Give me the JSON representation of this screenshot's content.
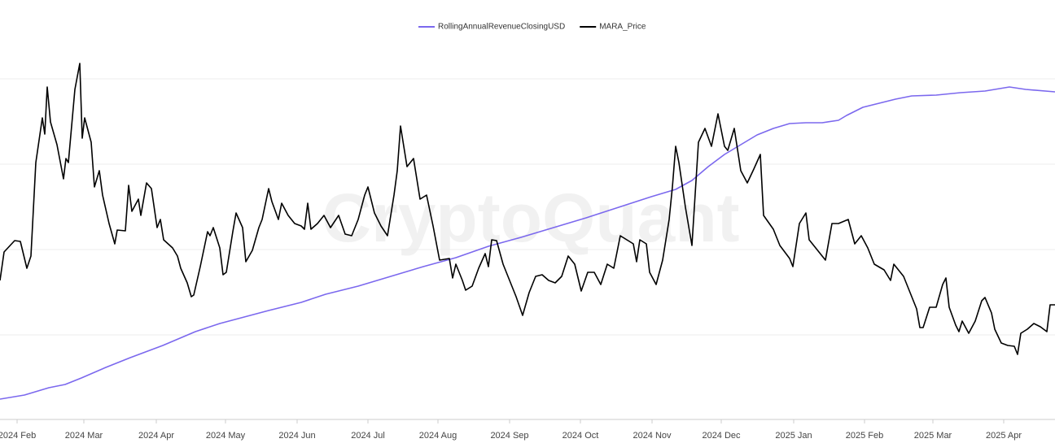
{
  "chart_data": {
    "type": "line",
    "watermark": "CryptoQuant",
    "legend": "top",
    "grid": true,
    "ytick_labels": false,
    "xlim": [
      0,
      1296
    ],
    "xticks": [
      {
        "value": 21,
        "label": "2024 Feb"
      },
      {
        "value": 103,
        "label": "2024 Mar"
      },
      {
        "value": 192,
        "label": "2024 Apr"
      },
      {
        "value": 277,
        "label": "2024 May"
      },
      {
        "value": 365,
        "label": "2024 Jun"
      },
      {
        "value": 452,
        "label": "2024 Jul"
      },
      {
        "value": 538,
        "label": "2024 Aug"
      },
      {
        "value": 626,
        "label": "2024 Sep"
      },
      {
        "value": 713,
        "label": "2024 Oct"
      },
      {
        "value": 801,
        "label": "2024 Nov"
      },
      {
        "value": 886,
        "label": "2024 Dec"
      },
      {
        "value": 975,
        "label": "2025 Jan"
      },
      {
        "value": 1062,
        "label": "2025 Feb"
      },
      {
        "value": 1146,
        "label": "2025 Mar"
      },
      {
        "value": 1233,
        "label": "2025 Apr"
      }
    ],
    "ylim": [
      0,
      472.5
    ],
    "yticks": [
      104,
      209,
      314,
      419
    ],
    "series": [
      {
        "name": "RollingAnnualRevenueClosingUSD",
        "color": "#7b68ee",
        "x": [
          0,
          30,
          60,
          80,
          100,
          130,
          160,
          200,
          240,
          270,
          300,
          330,
          370,
          400,
          440,
          480,
          520,
          560,
          600,
          640,
          680,
          720,
          760,
          800,
          830,
          850,
          870,
          890,
          910,
          930,
          950,
          970,
          990,
          1010,
          1030,
          1040,
          1060,
          1080,
          1100,
          1120,
          1150,
          1180,
          1210,
          1240,
          1260,
          1296
        ],
        "values": [
          25,
          30,
          39,
          43,
          51,
          64,
          76,
          91,
          108,
          118,
          126,
          134,
          144,
          154,
          164,
          176,
          188,
          199,
          213,
          224,
          236,
          248,
          261,
          274,
          283,
          294,
          311,
          326,
          338,
          350,
          358,
          364,
          365,
          365,
          368,
          374,
          384,
          389,
          394,
          398,
          399,
          402,
          404,
          409,
          406,
          403
        ]
      },
      {
        "name": "MARA_Price",
        "color": "#000000",
        "x": [
          0,
          5,
          18,
          25,
          33,
          38,
          44,
          52,
          55,
          58,
          62,
          70,
          78,
          81,
          84,
          92,
          98,
          101,
          104,
          112,
          116,
          122,
          126,
          134,
          141,
          144,
          154,
          158,
          162,
          170,
          173,
          180,
          186,
          193,
          197,
          201,
          212,
          218,
          222,
          230,
          235,
          238,
          246,
          255,
          258,
          262,
          270,
          274,
          278,
          286,
          290,
          298,
          302,
          310,
          318,
          322,
          330,
          334,
          342,
          346,
          354,
          362,
          370,
          374,
          378,
          382,
          390,
          398,
          406,
          416,
          424,
          432,
          440,
          448,
          452,
          460,
          468,
          476,
          484,
          488,
          492,
          496,
          500,
          508,
          516,
          524,
          532,
          540,
          552,
          556,
          560,
          568,
          572,
          580,
          588,
          596,
          600,
          604,
          610,
          618,
          626,
          634,
          642,
          650,
          658,
          666,
          674,
          682,
          690,
          698,
          706,
          714,
          722,
          730,
          738,
          746,
          754,
          762,
          770,
          778,
          782,
          786,
          794,
          798,
          806,
          814,
          822,
          826,
          830,
          834,
          842,
          850,
          858,
          866,
          874,
          882,
          890,
          894,
          902,
          910,
          918,
          926,
          934,
          938,
          950,
          958,
          970,
          974,
          982,
          990,
          994,
          1006,
          1014,
          1022,
          1030,
          1042,
          1050,
          1058,
          1066,
          1074,
          1086,
          1094,
          1098,
          1110,
          1118,
          1126,
          1130,
          1134,
          1142,
          1150,
          1158,
          1162,
          1166,
          1174,
          1178,
          1182,
          1190,
          1198,
          1206,
          1210,
          1218,
          1222,
          1230,
          1238,
          1246,
          1250,
          1254,
          1262,
          1270,
          1278,
          1286,
          1290,
          1296
        ],
        "values": [
          171,
          206,
          220,
          219,
          186,
          201,
          316,
          371,
          351,
          409,
          366,
          338,
          296,
          321,
          316,
          406,
          438,
          346,
          371,
          341,
          286,
          306,
          276,
          241,
          216,
          233,
          232,
          288,
          256,
          271,
          251,
          291,
          284,
          236,
          246,
          221,
          211,
          201,
          186,
          168,
          151,
          153,
          188,
          231,
          226,
          236,
          211,
          178,
          181,
          231,
          254,
          236,
          194,
          208,
          236,
          246,
          284,
          268,
          246,
          266,
          251,
          241,
          238,
          234,
          266,
          234,
          241,
          251,
          236,
          251,
          228,
          226,
          246,
          276,
          286,
          254,
          238,
          226,
          276,
          306,
          361,
          336,
          311,
          321,
          271,
          276,
          238,
          196,
          198,
          174,
          191,
          171,
          159,
          164,
          186,
          204,
          188,
          221,
          220,
          191,
          171,
          151,
          128,
          156,
          176,
          178,
          171,
          168,
          176,
          201,
          191,
          158,
          181,
          181,
          166,
          191,
          186,
          226,
          221,
          216,
          194,
          221,
          216,
          181,
          166,
          196,
          246,
          286,
          336,
          316,
          261,
          214,
          341,
          358,
          336,
          376,
          336,
          331,
          358,
          306,
          291,
          308,
          326,
          251,
          234,
          214,
          198,
          188,
          241,
          254,
          221,
          206,
          196,
          241,
          241,
          246,
          216,
          226,
          211,
          191,
          184,
          171,
          191,
          176,
          156,
          136,
          113,
          113,
          138,
          138,
          166,
          174,
          138,
          116,
          108,
          121,
          106,
          121,
          146,
          150,
          131,
          111,
          94,
          91,
          90,
          80,
          106,
          111,
          118,
          114,
          108,
          141,
          141
        ]
      }
    ]
  }
}
